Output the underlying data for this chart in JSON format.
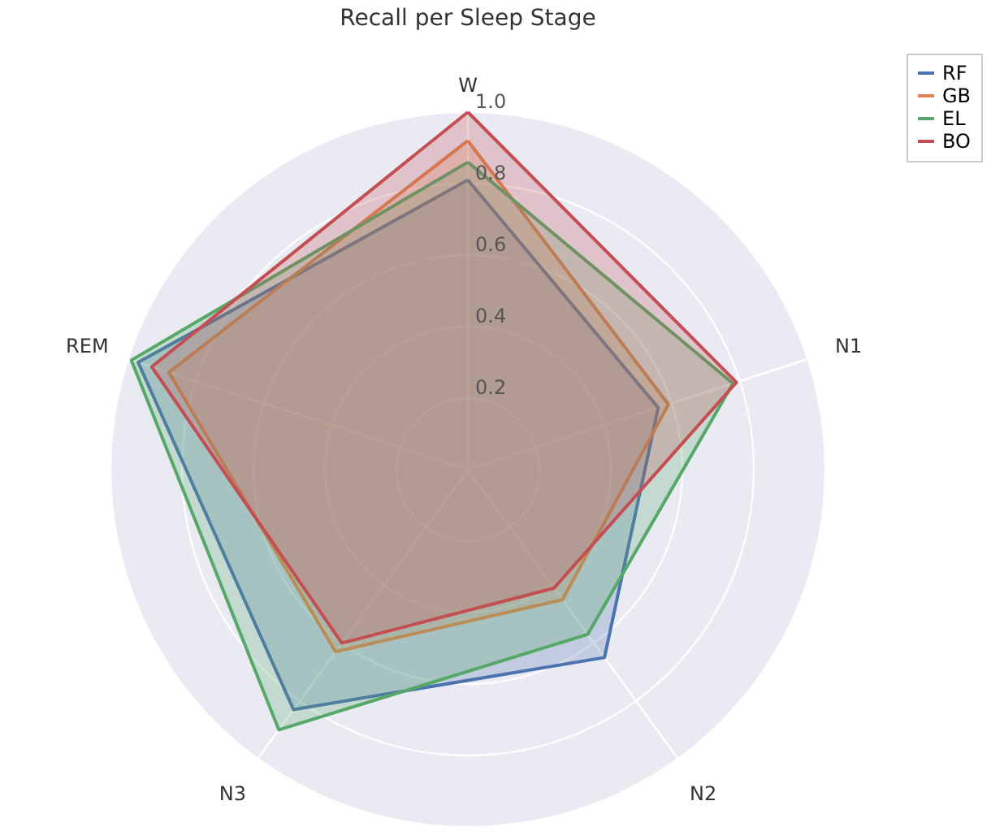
{
  "chart_data": {
    "type": "radar",
    "title": "Recall per Sleep Stage",
    "categories": [
      "W",
      "N1",
      "N2",
      "N3",
      "REM"
    ],
    "ylim": [
      0,
      1.0
    ],
    "yticks": [
      0.2,
      0.4,
      0.6,
      0.8,
      {
        "value": 1.0,
        "label": "1.0"
      }
    ],
    "grid": true,
    "legend": "top right",
    "series": [
      {
        "name": "RF",
        "color": "#4c72b0",
        "values": [
          0.81,
          0.56,
          0.65,
          0.83,
          0.97
        ]
      },
      {
        "name": "GB",
        "color": "#dd8452",
        "values": [
          0.92,
          0.59,
          0.45,
          0.63,
          0.88
        ]
      },
      {
        "name": "EL",
        "color": "#55a868",
        "values": [
          0.86,
          0.78,
          0.57,
          0.9,
          0.99
        ]
      },
      {
        "name": "BO",
        "color": "#c44e52",
        "values": [
          1.0,
          0.79,
          0.41,
          0.6,
          0.93
        ]
      }
    ]
  }
}
